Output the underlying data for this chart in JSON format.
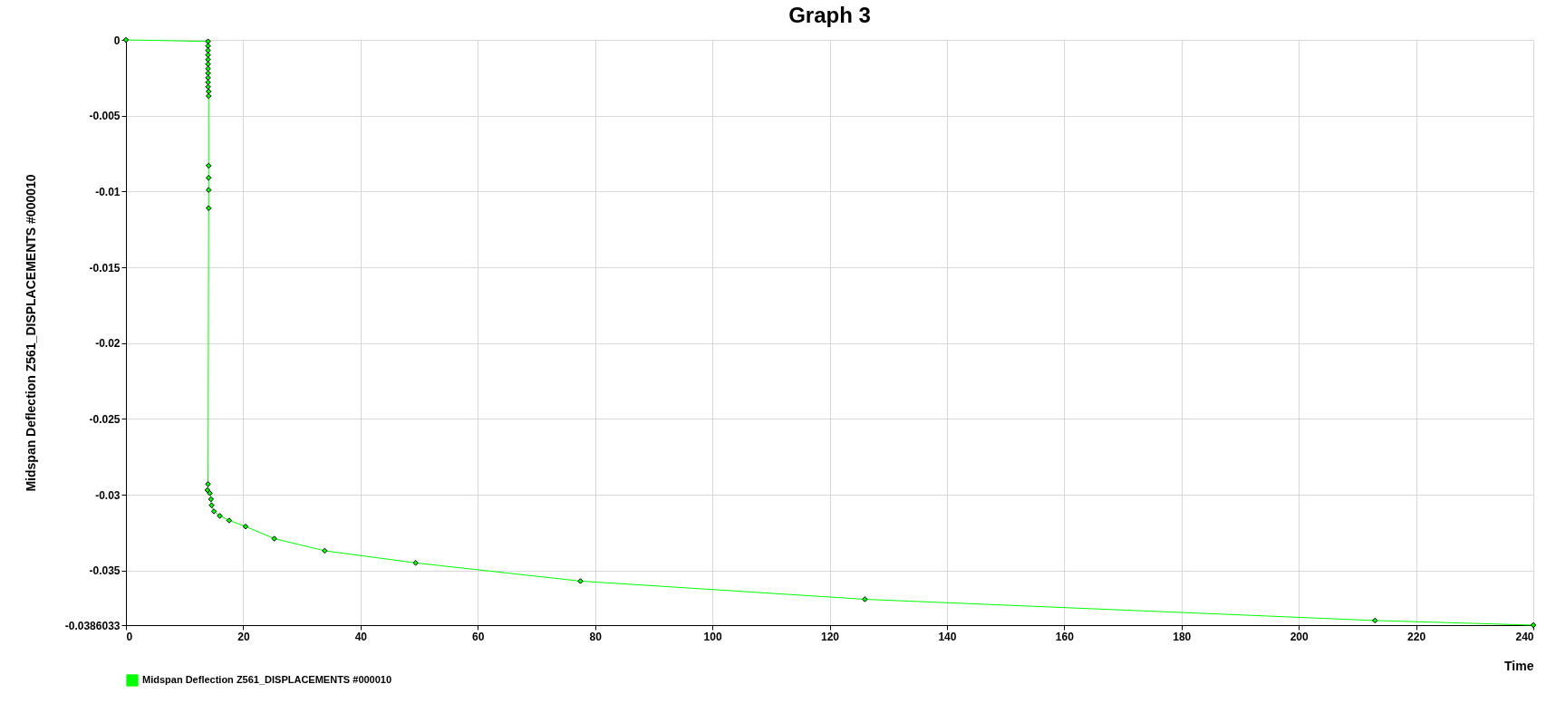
{
  "chart_data": {
    "type": "line",
    "title": "Graph 3",
    "xlabel": "Time",
    "ylabel": "Midspan Deflection Z561_DISPLACEMENTS #000010",
    "series": [
      {
        "name": "Midspan Deflection Z561_DISPLACEMENTS #000010",
        "color": "#00ff00",
        "x": [
          0,
          14.0,
          14.0,
          14.0,
          14.0,
          14.0,
          14.0,
          14.0,
          14.0,
          14.0,
          14.0,
          14.0,
          14.1,
          14.1,
          14.1,
          14.1,
          14.1,
          14.1,
          14.0,
          13.9,
          14.3,
          14.5,
          14.6,
          15.0,
          16.0,
          17.6,
          20.4,
          25.3,
          33.9,
          49.4,
          77.5,
          126,
          213,
          240
        ],
        "values": [
          0,
          -0.0001,
          -0.0004,
          -0.0007,
          -0.001,
          -0.0013,
          -0.0016,
          -0.0019,
          -0.0022,
          -0.0025,
          -0.0028,
          -0.0031,
          -0.0034,
          -0.0037,
          -0.0083,
          -0.0091,
          -0.0099,
          -0.0111,
          -0.0293,
          -0.0297,
          -0.0299,
          -0.0303,
          -0.0307,
          -0.0311,
          -0.0314,
          -0.0317,
          -0.0321,
          -0.0329,
          -0.0337,
          -0.0345,
          -0.0357,
          -0.0369,
          -0.0383,
          -0.0386033
        ]
      }
    ],
    "xlim": [
      0,
      240
    ],
    "xticks": [
      0,
      20,
      40,
      60,
      80,
      100,
      120,
      140,
      160,
      180,
      200,
      220,
      240
    ],
    "ylim": [
      -0.0386033,
      0
    ],
    "yticks": [
      0,
      -0.005,
      -0.01,
      -0.015,
      -0.02,
      -0.025,
      -0.03,
      -0.035,
      -0.0386033
    ],
    "grid": true,
    "legend": "bottom",
    "marker": "diamond",
    "line_style": "solid"
  }
}
